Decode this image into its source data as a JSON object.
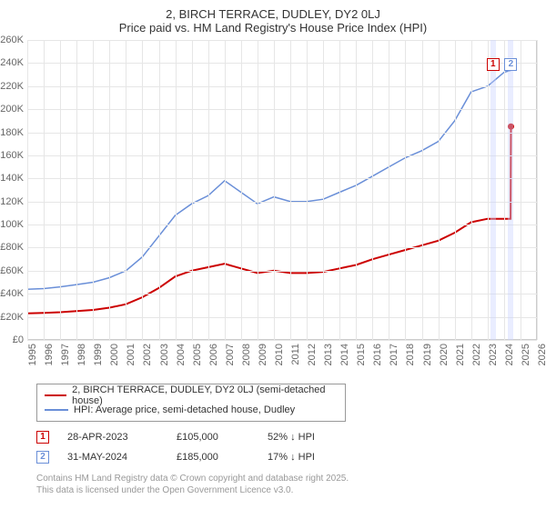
{
  "title": "2, BIRCH TERRACE, DUDLEY, DY2 0LJ",
  "subtitle": "Price paid vs. HM Land Registry's House Price Index (HPI)",
  "chart": {
    "type": "line",
    "background_color": "#ffffff",
    "grid_color": "#e6e6e6",
    "border_color": "#cccccc",
    "axis_label_color": "#666666",
    "axis_fontsize": 11,
    "ylim": [
      0,
      260000
    ],
    "ytick_step": 20000,
    "yticks": [
      "£0",
      "£20K",
      "£40K",
      "£60K",
      "£80K",
      "£100K",
      "£120K",
      "£140K",
      "£160K",
      "£180K",
      "£200K",
      "£220K",
      "£240K",
      "£260K"
    ],
    "xlim": [
      1995,
      2026
    ],
    "xticks": [
      1995,
      1996,
      1997,
      1998,
      1999,
      2000,
      2001,
      2002,
      2003,
      2004,
      2005,
      2006,
      2007,
      2008,
      2009,
      2010,
      2011,
      2012,
      2013,
      2014,
      2015,
      2016,
      2017,
      2018,
      2019,
      2020,
      2021,
      2022,
      2023,
      2024,
      2025,
      2026
    ],
    "series": [
      {
        "name": "address_line",
        "label": "2, BIRCH TERRACE, DUDLEY, DY2 0LJ (semi-detached house)",
        "color": "#cc0000",
        "line_width": 2,
        "points": [
          [
            1995,
            23000
          ],
          [
            1996,
            23500
          ],
          [
            1997,
            24000
          ],
          [
            1998,
            25000
          ],
          [
            1999,
            26000
          ],
          [
            2000,
            28000
          ],
          [
            2001,
            31000
          ],
          [
            2002,
            37000
          ],
          [
            2003,
            45000
          ],
          [
            2004,
            55000
          ],
          [
            2005,
            60000
          ],
          [
            2006,
            63000
          ],
          [
            2007,
            66000
          ],
          [
            2008,
            62000
          ],
          [
            2009,
            58000
          ],
          [
            2010,
            60000
          ],
          [
            2011,
            58000
          ],
          [
            2012,
            58000
          ],
          [
            2013,
            59000
          ],
          [
            2014,
            62000
          ],
          [
            2015,
            65000
          ],
          [
            2016,
            70000
          ],
          [
            2017,
            74000
          ],
          [
            2018,
            78000
          ],
          [
            2019,
            82000
          ],
          [
            2020,
            86000
          ],
          [
            2021,
            93000
          ],
          [
            2022,
            102000
          ],
          [
            2023,
            105000
          ],
          [
            2023.33,
            105000
          ],
          [
            2024.4,
            105000
          ],
          [
            2024.42,
            185000
          ]
        ]
      },
      {
        "name": "hpi_line",
        "label": "HPI: Average price, semi-detached house, Dudley",
        "color": "#6a8fd8",
        "line_width": 1.5,
        "points": [
          [
            1995,
            44000
          ],
          [
            1996,
            44500
          ],
          [
            1997,
            46000
          ],
          [
            1998,
            48000
          ],
          [
            1999,
            50000
          ],
          [
            2000,
            54000
          ],
          [
            2001,
            60000
          ],
          [
            2002,
            72000
          ],
          [
            2003,
            90000
          ],
          [
            2004,
            108000
          ],
          [
            2005,
            118000
          ],
          [
            2006,
            125000
          ],
          [
            2007,
            138000
          ],
          [
            2008,
            128000
          ],
          [
            2009,
            118000
          ],
          [
            2010,
            124000
          ],
          [
            2011,
            120000
          ],
          [
            2012,
            120000
          ],
          [
            2013,
            122000
          ],
          [
            2014,
            128000
          ],
          [
            2015,
            134000
          ],
          [
            2016,
            142000
          ],
          [
            2017,
            150000
          ],
          [
            2018,
            158000
          ],
          [
            2019,
            164000
          ],
          [
            2020,
            172000
          ],
          [
            2021,
            190000
          ],
          [
            2022,
            215000
          ],
          [
            2023,
            220000
          ],
          [
            2024,
            232000
          ],
          [
            2024.5,
            234000
          ]
        ]
      }
    ],
    "markers": [
      {
        "id": "1",
        "x": 2023.33,
        "color": "#cc0000",
        "box_top_pct": 6
      },
      {
        "id": "2",
        "x": 2024.42,
        "color": "#6a8fd8",
        "box_top_pct": 6
      }
    ]
  },
  "legend": {
    "border_color": "#999999",
    "items": [
      {
        "color": "#cc0000",
        "width": 2,
        "label": "2, BIRCH TERRACE, DUDLEY, DY2 0LJ (semi-detached house)"
      },
      {
        "color": "#6a8fd8",
        "width": 1.5,
        "label": "HPI: Average price, semi-detached house, Dudley"
      }
    ]
  },
  "transactions": [
    {
      "id": "1",
      "color": "#cc0000",
      "date": "28-APR-2023",
      "price": "£105,000",
      "pct": "52% ↓ HPI"
    },
    {
      "id": "2",
      "color": "#6a8fd8",
      "date": "31-MAY-2024",
      "price": "£185,000",
      "pct": "17% ↓ HPI"
    }
  ],
  "footer": {
    "line1": "Contains HM Land Registry data © Crown copyright and database right 2025.",
    "line2": "This data is licensed under the Open Government Licence v3.0."
  }
}
